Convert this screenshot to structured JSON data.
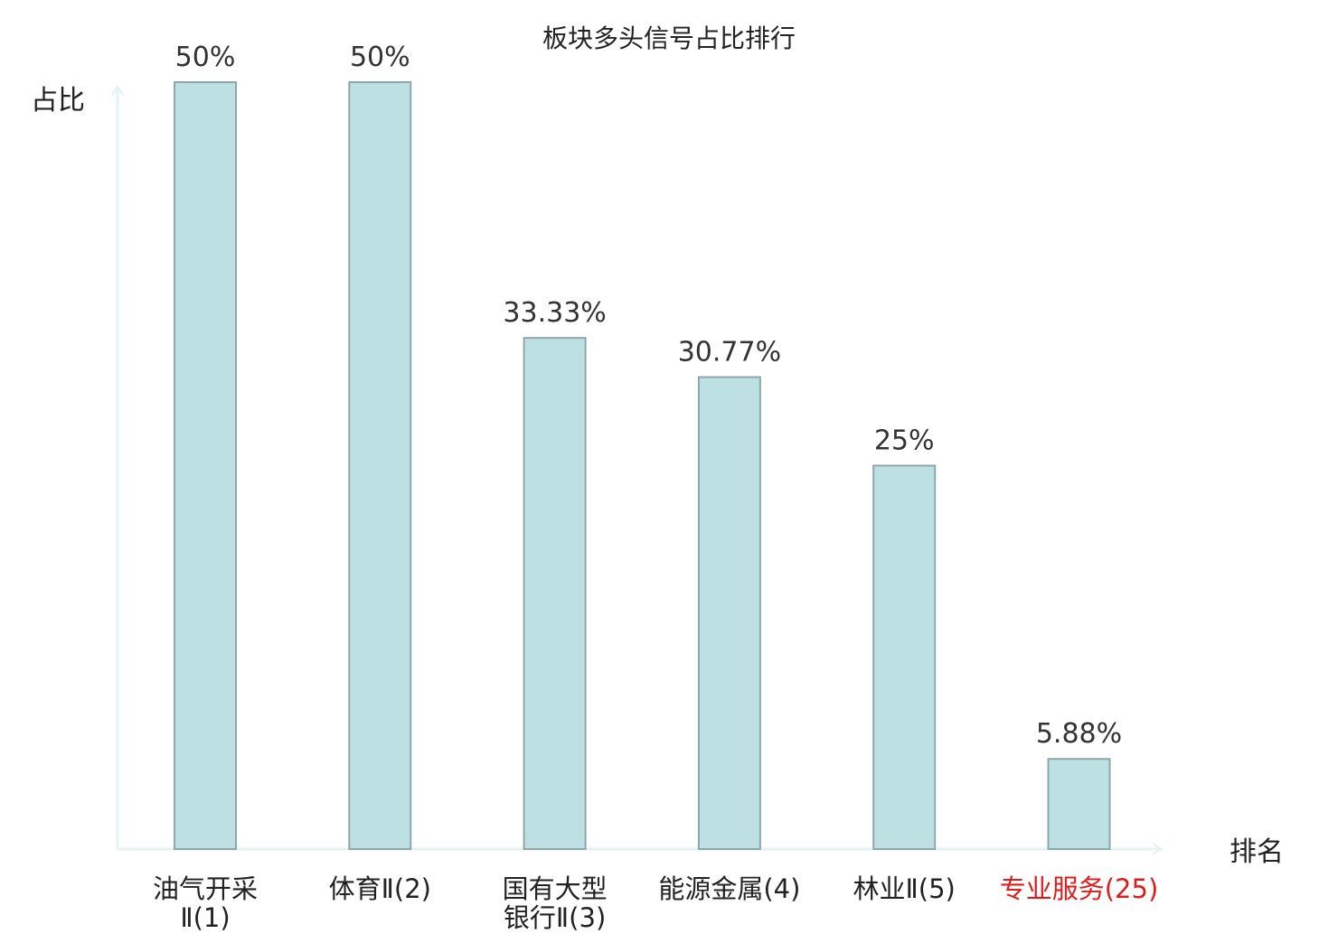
{
  "chart_data": {
    "type": "bar",
    "title": "板块多头信号占比排行",
    "xlabel": "排名",
    "ylabel": "占比",
    "categories": [
      "油气开采Ⅱ(1)",
      "体育Ⅱ(2)",
      "国有大型银行Ⅱ(3)",
      "能源金属(4)",
      "林业Ⅱ(5)",
      "专业服务(25)"
    ],
    "category_label_lines": [
      [
        "油气开采",
        "Ⅱ(1)"
      ],
      [
        "体育Ⅱ(2)"
      ],
      [
        "国有大型",
        "银行Ⅱ(3)"
      ],
      [
        "能源金属(4)"
      ],
      [
        "林业Ⅱ(5)"
      ],
      [
        "专业服务(25)"
      ]
    ],
    "values": [
      50,
      50,
      33.33,
      30.77,
      25,
      5.88
    ],
    "value_labels": [
      "50%",
      "50%",
      "33.33%",
      "30.77%",
      "25%",
      "5.88%"
    ],
    "highlight_index": 5,
    "ylim": [
      0,
      50
    ],
    "grid": false,
    "legend": "none",
    "colors": {
      "bar_fill": "#bde0e2",
      "bar_stroke": "#8fa7aa",
      "axis": "#e2f3f1",
      "text": "#222222",
      "value_text": "#333333",
      "highlight_text": "#e01b1b"
    }
  }
}
